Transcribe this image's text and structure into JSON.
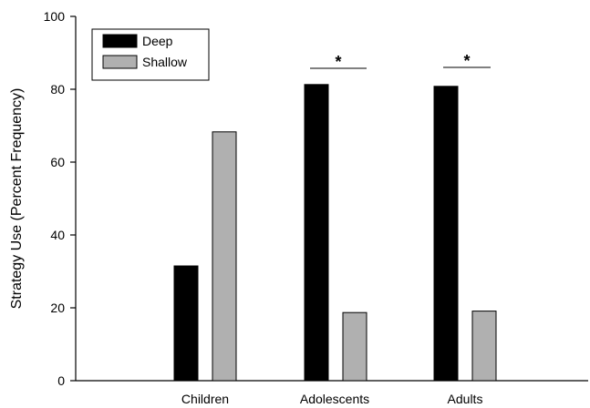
{
  "chart_data": {
    "type": "bar",
    "title": "",
    "xlabel": "",
    "ylabel": "Strategy Use (Percent Frequency)",
    "ylim": [
      0,
      100
    ],
    "yticks": [
      0,
      20,
      40,
      60,
      80,
      100
    ],
    "categories": [
      "Children",
      "Adolescents",
      "Adults"
    ],
    "series": [
      {
        "name": "Deep",
        "values": [
          31.5,
          81.3,
          80.8
        ],
        "color": "#000000"
      },
      {
        "name": "Shallow",
        "values": [
          68.3,
          18.7,
          19.1
        ],
        "color": "#b0b0b0"
      }
    ],
    "significance": [
      {
        "category": "Adolescents",
        "label": "*"
      },
      {
        "category": "Adults",
        "label": "*"
      }
    ],
    "legend": {
      "placement": "top-left"
    },
    "grid": false
  }
}
